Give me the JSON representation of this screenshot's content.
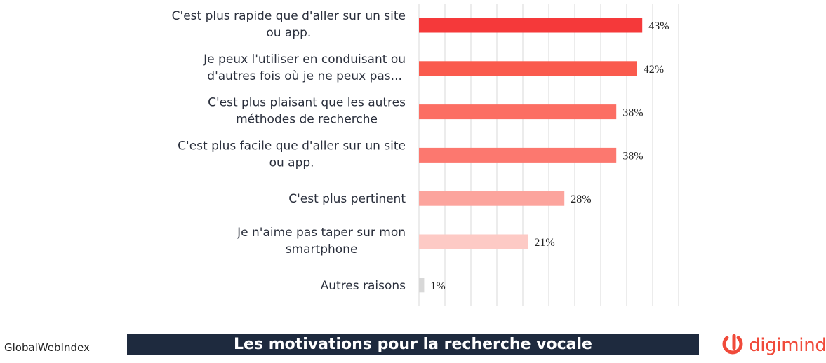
{
  "chart_data": {
    "type": "bar",
    "orientation": "horizontal",
    "title": "Les motivations pour la recherche vocale",
    "categories": [
      [
        "C'est plus rapide que d'aller sur un site",
        "ou app."
      ],
      [
        "Je peux l'utiliser en conduisant ou",
        "d'autres fois où je ne peux pas..."
      ],
      [
        "C'est plus plaisant que les autres",
        "méthodes de recherche"
      ],
      [
        "C'est plus facile que d'aller sur un site",
        "ou app."
      ],
      [
        "C'est plus pertinent"
      ],
      [
        "Je n'aime pas taper sur mon",
        "smartphone"
      ],
      [
        "Autres raisons"
      ]
    ],
    "values": [
      43,
      42,
      38,
      38,
      28,
      21,
      1
    ],
    "value_labels": [
      "43%",
      "42%",
      "38%",
      "38%",
      "28%",
      "21%",
      "1%"
    ],
    "bar_colors": [
      "#f5393a",
      "#fa5a4d",
      "#fc6e63",
      "#fc786f",
      "#fca49d",
      "#fdcac5",
      "#d8d8d8"
    ],
    "xlim": [
      0,
      50
    ],
    "grid": true,
    "xlabel": "",
    "ylabel": ""
  },
  "footer": {
    "source": "GlobalWebIndex",
    "brand": "digimind",
    "brand_color": "#f04a3a",
    "banner_color": "#1e2a3e"
  }
}
